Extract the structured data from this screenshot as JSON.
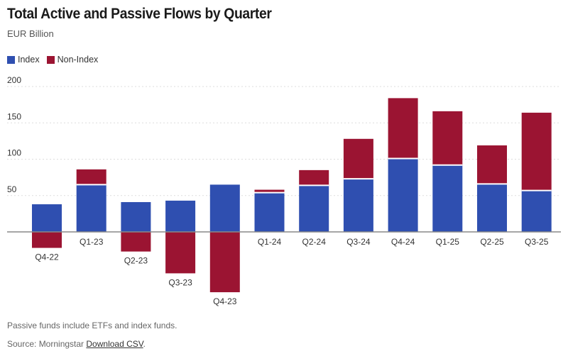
{
  "header": {
    "title": "Total Active and Passive Flows by Quarter",
    "subtitle": "EUR Billion"
  },
  "legend": {
    "index_label": "Index",
    "nonindex_label": "Non-Index"
  },
  "colors": {
    "index": "#2f4fb0",
    "nonindex": "#9b1432",
    "grid": "#dddddd",
    "zero": "#888888"
  },
  "footer": {
    "note": "Passive funds include ETFs and index funds.",
    "source_label": "Source: Morningstar",
    "download_link": "Download CSV"
  },
  "chart_data": {
    "type": "bar",
    "stacked": true,
    "categories": [
      "Q4-22",
      "Q1-23",
      "Q2-23",
      "Q3-23",
      "Q4-23",
      "Q1-24",
      "Q2-24",
      "Q3-24",
      "Q4-24",
      "Q1-25",
      "Q2-25",
      "Q3-25"
    ],
    "series": [
      {
        "name": "Index",
        "values": [
          38,
          65,
          41,
          43,
          65,
          54,
          64,
          73,
          101,
          92,
          66,
          57
        ]
      },
      {
        "name": "Non-Index",
        "values": [
          -22,
          21,
          -27,
          -57,
          -83,
          4,
          21,
          55,
          83,
          74,
          53,
          107
        ]
      }
    ],
    "yticks": [
      50,
      100,
      150,
      200
    ],
    "ylim": [
      -85,
      200
    ],
    "grid": true,
    "legend_position": "top-left"
  }
}
